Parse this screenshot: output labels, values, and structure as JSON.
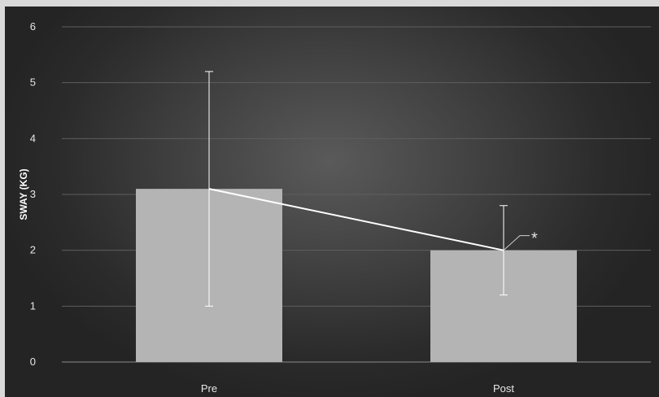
{
  "chart_data": {
    "type": "bar",
    "title": "",
    "xlabel": "",
    "ylabel": "SWAY (KG)",
    "ylim": [
      0,
      6
    ],
    "yticks": [
      0,
      1,
      2,
      3,
      4,
      5,
      6
    ],
    "grid": true,
    "legend": "none",
    "categories": [
      "Pre",
      "Post"
    ],
    "series": [
      {
        "values": [
          3.1,
          2.0
        ],
        "error_low": [
          1.0,
          1.2
        ],
        "error_high": [
          5.2,
          2.8
        ]
      }
    ],
    "connecting_line": true,
    "annotations": [
      {
        "category": "Post",
        "text": "*"
      }
    ],
    "colors": {
      "bar": "#b4b4b4",
      "line": "#ffffff",
      "error_bar": "#ffffff",
      "grid": "#5e5e5e"
    }
  }
}
